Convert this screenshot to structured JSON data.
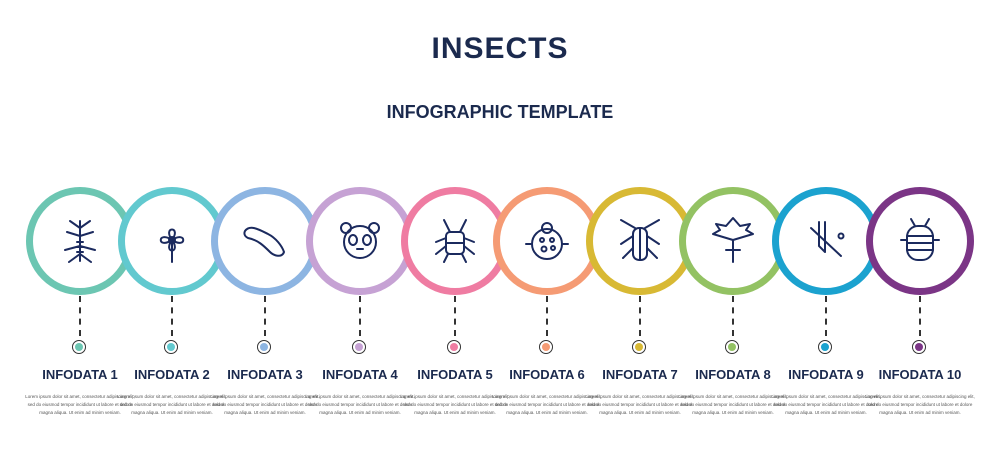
{
  "title": "INSECTS",
  "subtitle": "INFOGRAPHIC TEMPLATE",
  "steps": [
    {
      "label": "INFODATA 1",
      "color": "#6cc6b2",
      "icon": "stick-insect-icon"
    },
    {
      "label": "INFODATA 2",
      "color": "#62c9cf",
      "icon": "clover-icon"
    },
    {
      "label": "INFODATA 3",
      "color": "#8db5e2",
      "icon": "larva-icon"
    },
    {
      "label": "INFODATA 4",
      "color": "#c6a2d4",
      "icon": "panda-icon"
    },
    {
      "label": "INFODATA 5",
      "color": "#ef7ca2",
      "icon": "cicada-icon"
    },
    {
      "label": "INFODATA 6",
      "color": "#f59b74",
      "icon": "ladybug-icon"
    },
    {
      "label": "INFODATA 7",
      "color": "#d8b934",
      "icon": "cockroach-icon"
    },
    {
      "label": "INFODATA 8",
      "color": "#93c263",
      "icon": "leaf-icon"
    },
    {
      "label": "INFODATA 9",
      "color": "#1ba2cf",
      "icon": "branch-icon"
    },
    {
      "label": "INFODATA 10",
      "color": "#7b3586",
      "icon": "pill-bug-icon"
    }
  ],
  "description": "Lorem ipsum dolor sit amet, consectetur adipiscing elit, sed do eiusmod tempor incididunt ut labore et dolore magna aliqua. Ut enim ad minim veniam."
}
